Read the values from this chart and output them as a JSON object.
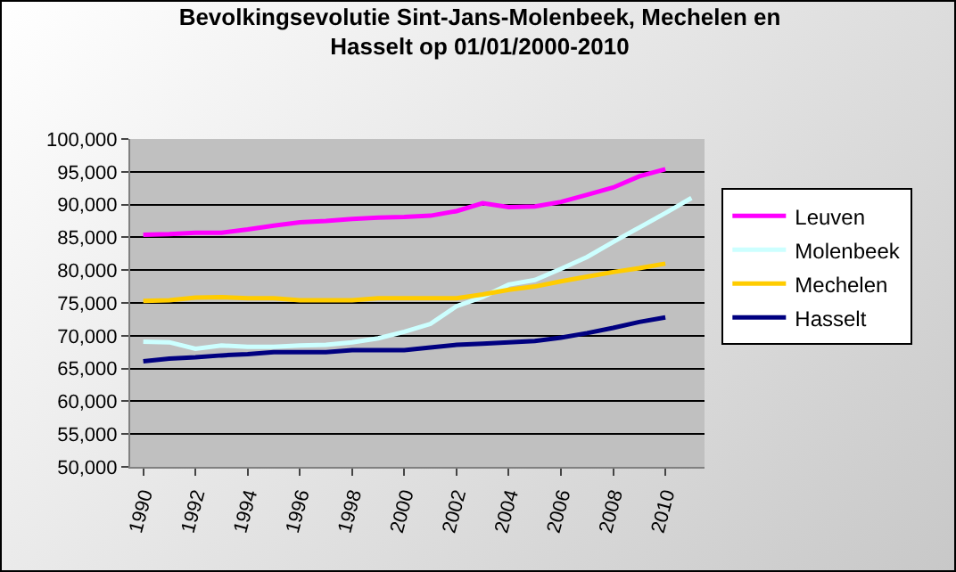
{
  "chart_data": {
    "type": "line",
    "title": "Bevolkingsevolutie Sint-Jans-Molenbeek, Mechelen en\nHasselt op 01/01/2000-2010",
    "categories": [
      "1990",
      null,
      "1992",
      null,
      "1994",
      null,
      "1996",
      null,
      "1998",
      null,
      "2000",
      null,
      "2002",
      null,
      "2004",
      null,
      "2006",
      null,
      "2008",
      null,
      "2010",
      null
    ],
    "series": [
      {
        "name": "Leuven",
        "color": "#ff00ff",
        "values": [
          85400,
          85500,
          85700,
          85700,
          86200,
          86800,
          87300,
          87500,
          87800,
          88000,
          88100,
          88300,
          89000,
          90200,
          89600,
          89700,
          90400,
          91500,
          92600,
          94300,
          95400,
          null
        ]
      },
      {
        "name": "Molenbeek",
        "color": "#ccffff",
        "values": [
          69100,
          69000,
          68000,
          68500,
          68300,
          68300,
          68500,
          68600,
          69000,
          69600,
          70600,
          71800,
          74500,
          75900,
          77800,
          78500,
          80200,
          82000,
          84300,
          86500,
          88700,
          91000
        ]
      },
      {
        "name": "Mechelen",
        "color": "#ffcc00",
        "values": [
          75300,
          75400,
          75800,
          75900,
          75700,
          75700,
          75400,
          75400,
          75400,
          75700,
          75700,
          75700,
          75700,
          76300,
          77000,
          77500,
          78300,
          79000,
          79700,
          80300,
          81000,
          null
        ]
      },
      {
        "name": "Hasselt",
        "color": "#000080",
        "values": [
          66100,
          66500,
          66700,
          67000,
          67200,
          67500,
          67500,
          67500,
          67800,
          67800,
          67800,
          68200,
          68600,
          68800,
          69000,
          69200,
          69700,
          70400,
          71200,
          72100,
          72800,
          null
        ]
      }
    ],
    "ylim": [
      50000,
      100000
    ],
    "yticks": [
      {
        "value": 50000,
        "label": "50,000"
      },
      {
        "value": 55000,
        "label": "55,000"
      },
      {
        "value": 60000,
        "label": "60,000"
      },
      {
        "value": 65000,
        "label": "65,000"
      },
      {
        "value": 70000,
        "label": "70,000"
      },
      {
        "value": 75000,
        "label": "75,000"
      },
      {
        "value": 80000,
        "label": "80,000"
      },
      {
        "value": 85000,
        "label": "85,000"
      },
      {
        "value": 90000,
        "label": "90,000"
      },
      {
        "value": 95000,
        "label": "95,000"
      },
      {
        "value": 100000,
        "label": "100,000"
      }
    ],
    "grid": "y",
    "legend": "right",
    "marker": "none",
    "line_style": "solid"
  }
}
